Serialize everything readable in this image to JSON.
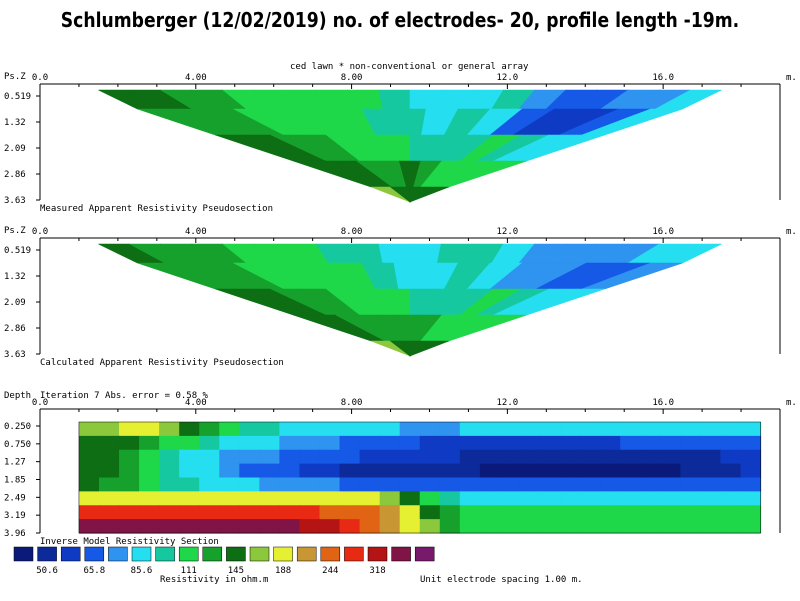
{
  "title": "Schlumberger (12/02/2019) no. of electrodes- 20, profile length -19m.",
  "array_note": "ced lawn * non-conventional or general array",
  "x_axis": {
    "ticks": [
      "0.0",
      "4.00",
      "8.00",
      "12.0",
      "16.0"
    ],
    "unit": "m."
  },
  "colors": [
    "#0a1a7a",
    "#0c2a9a",
    "#0f3bc4",
    "#1659e6",
    "#2f93f0",
    "#25dff0",
    "#16c8a0",
    "#1ed84a",
    "#16a02c",
    "#0d6e14",
    "#8cc83c",
    "#e6f032",
    "#c89632",
    "#e06414",
    "#e82a14",
    "#b41414",
    "#801446",
    "#781a6c"
  ],
  "chart_data": [
    {
      "type": "heatmap",
      "name": "Measured Apparent Resistivity Pseudosection",
      "ylabel": "Ps.Z",
      "x_range": [
        0,
        19
      ],
      "y_ticks": [
        "0.519",
        "1.32",
        "2.09",
        "2.86",
        "3.63"
      ],
      "levels": [
        0.519,
        1.32,
        2.09,
        2.86,
        3.63
      ],
      "rows": [
        [
          9,
          9,
          8,
          8,
          7,
          7,
          7,
          7,
          7,
          6,
          5,
          5,
          5,
          6,
          4,
          3,
          3,
          4,
          4,
          5
        ],
        [
          8,
          8,
          8,
          7,
          7,
          7,
          7,
          6,
          6,
          5,
          6,
          5,
          3,
          2,
          2,
          3,
          5
        ],
        [
          9,
          9,
          8,
          8,
          7,
          7,
          7,
          6,
          6,
          6,
          7,
          6,
          5,
          5
        ],
        [
          9,
          9,
          9,
          8,
          8,
          9,
          8,
          7,
          7,
          7,
          7
        ],
        [
          10,
          10,
          9,
          9,
          9,
          9,
          9,
          9
        ]
      ]
    },
    {
      "type": "heatmap",
      "name": "Calculated Apparent Resistivity Pseudosection",
      "ylabel": "Ps.Z",
      "x_range": [
        0,
        19
      ],
      "y_ticks": [
        "0.519",
        "1.32",
        "2.09",
        "2.86",
        "3.63"
      ],
      "levels": [
        0.519,
        1.32,
        2.09,
        2.86,
        3.63
      ],
      "rows": [
        [
          9,
          8,
          8,
          8,
          7,
          7,
          7,
          6,
          6,
          5,
          5,
          6,
          6,
          5,
          4,
          4,
          4,
          4,
          5,
          5
        ],
        [
          8,
          8,
          8,
          7,
          7,
          7,
          7,
          6,
          5,
          5,
          6,
          5,
          4,
          4,
          3,
          3,
          4
        ],
        [
          9,
          9,
          8,
          8,
          7,
          7,
          7,
          6,
          6,
          6,
          7,
          6,
          5,
          5
        ],
        [
          9,
          9,
          8,
          8,
          8,
          8,
          8,
          7,
          7,
          7,
          7
        ],
        [
          10,
          10,
          9,
          9,
          9,
          9,
          9,
          9
        ]
      ]
    },
    {
      "type": "heatmap",
      "name": "Inverse Model Resistivity Section",
      "ylabel": "Depth",
      "annotation": "Iteration 7 Abs. error = 0.58 %",
      "x_range": [
        0,
        19
      ],
      "y_ticks": [
        "0.250",
        "0.750",
        "1.27",
        "1.85",
        "2.49",
        "3.19",
        "3.96"
      ],
      "rows": [
        [
          10,
          10,
          11,
          11,
          10,
          9,
          8,
          7,
          6,
          6,
          5,
          5,
          5,
          5,
          5,
          5,
          4,
          4,
          4,
          5,
          5,
          5,
          5,
          5,
          5,
          5,
          5,
          5,
          5,
          5,
          5,
          5,
          5,
          5
        ],
        [
          9,
          9,
          9,
          8,
          7,
          7,
          6,
          5,
          5,
          5,
          4,
          4,
          4,
          3,
          3,
          3,
          3,
          2,
          2,
          2,
          2,
          2,
          2,
          2,
          2,
          2,
          2,
          3,
          3,
          3,
          3,
          3,
          3,
          3
        ],
        [
          9,
          9,
          8,
          7,
          6,
          5,
          5,
          4,
          4,
          4,
          3,
          3,
          3,
          3,
          2,
          2,
          2,
          2,
          2,
          1,
          1,
          1,
          1,
          1,
          1,
          1,
          1,
          1,
          1,
          1,
          1,
          1,
          2,
          2
        ],
        [
          9,
          9,
          8,
          7,
          6,
          5,
          5,
          4,
          3,
          3,
          3,
          2,
          2,
          1,
          1,
          1,
          1,
          1,
          1,
          1,
          0,
          0,
          0,
          0,
          0,
          0,
          0,
          0,
          0,
          0,
          1,
          1,
          1,
          2
        ],
        [
          9,
          8,
          8,
          7,
          6,
          6,
          5,
          5,
          5,
          4,
          4,
          4,
          4,
          3,
          3,
          3,
          3,
          3,
          3,
          3,
          3,
          3,
          3,
          3,
          3,
          3,
          3,
          3,
          3,
          3,
          3,
          3,
          3,
          3
        ],
        [
          11,
          11,
          11,
          11,
          11,
          11,
          11,
          11,
          11,
          11,
          11,
          11,
          11,
          11,
          11,
          10,
          9,
          7,
          6,
          5,
          5,
          5,
          5,
          5,
          5,
          5,
          5,
          5,
          5,
          5,
          5,
          5,
          5,
          5
        ],
        [
          14,
          14,
          14,
          14,
          14,
          14,
          14,
          14,
          14,
          14,
          14,
          14,
          13,
          13,
          13,
          12,
          11,
          9,
          8,
          7,
          7,
          7,
          7,
          7,
          7,
          7,
          7,
          7,
          7,
          7,
          7,
          7,
          7,
          7
        ],
        [
          16,
          16,
          16,
          16,
          16,
          16,
          16,
          16,
          16,
          16,
          16,
          15,
          15,
          14,
          13,
          12,
          11,
          10,
          8,
          7,
          7,
          7,
          7,
          7,
          7,
          7,
          7,
          7,
          7,
          7,
          7,
          7,
          7,
          7
        ]
      ]
    }
  ],
  "legend": {
    "labels": [
      "50.6",
      "65.8",
      "85.6",
      "111",
      "145",
      "188",
      "244",
      "318"
    ],
    "title": "Resistivity in ohm.m",
    "spacing_note": "Unit electrode spacing 1.00 m."
  }
}
